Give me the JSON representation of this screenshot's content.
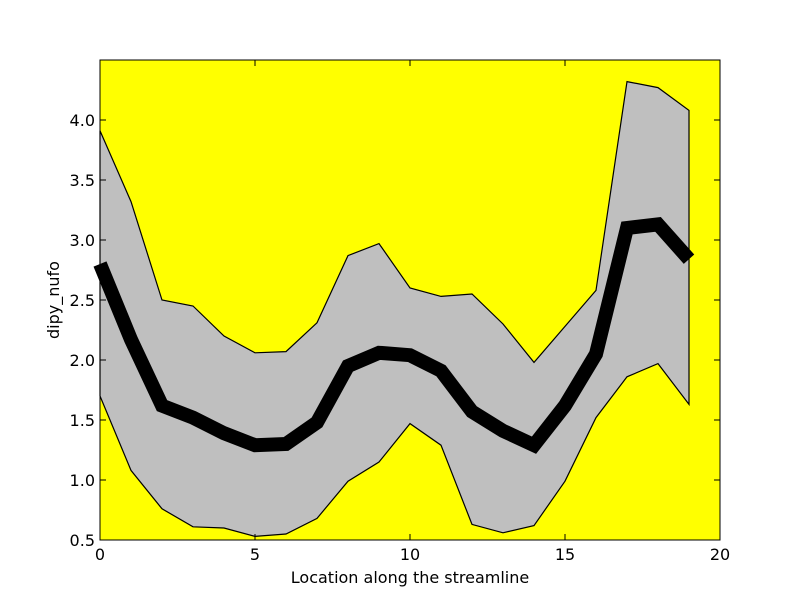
{
  "chart_data": {
    "type": "line",
    "title": "",
    "xlabel": "Location along the streamline",
    "ylabel": "dipy_nufo",
    "xlim": [
      0,
      20
    ],
    "ylim": [
      0.5,
      4.5
    ],
    "xticks": [
      0,
      5,
      10,
      15,
      20
    ],
    "xtick_labels": [
      "0",
      "5",
      "10",
      "15",
      "20"
    ],
    "yticks": [
      0.5,
      1.0,
      1.5,
      2.0,
      2.5,
      3.0,
      3.5,
      4.0
    ],
    "ytick_labels": [
      "0.5",
      "1.0",
      "1.5",
      "2.0",
      "2.5",
      "3.0",
      "3.5",
      "4.0"
    ],
    "grid": false,
    "legend": false,
    "x": [
      0,
      1,
      2,
      3,
      4,
      5,
      6,
      7,
      8,
      9,
      10,
      11,
      12,
      13,
      14,
      15,
      16,
      17,
      18,
      19
    ],
    "series": [
      {
        "role": "mean",
        "values": [
          2.8,
          2.17,
          1.62,
          1.52,
          1.39,
          1.29,
          1.3,
          1.48,
          1.95,
          2.06,
          2.04,
          1.91,
          1.57,
          1.41,
          1.29,
          1.62,
          2.05,
          3.1,
          3.13,
          2.84
        ]
      },
      {
        "role": "upper",
        "values": [
          3.91,
          3.32,
          2.5,
          2.45,
          2.2,
          2.06,
          2.07,
          2.31,
          2.87,
          2.97,
          2.6,
          2.53,
          2.55,
          2.3,
          1.98,
          2.28,
          2.58,
          4.32,
          4.27,
          4.08
        ]
      },
      {
        "role": "lower",
        "values": [
          1.7,
          1.08,
          0.76,
          0.61,
          0.6,
          0.53,
          0.55,
          0.68,
          0.99,
          1.15,
          1.47,
          1.29,
          0.63,
          0.56,
          0.62,
          0.99,
          1.52,
          1.86,
          1.97,
          1.63
        ]
      }
    ],
    "colors": {
      "axes_background": "#ffff00",
      "band_fill": "#bfbfbf",
      "band_edge": "#000000",
      "mean_line": "#000000"
    }
  }
}
